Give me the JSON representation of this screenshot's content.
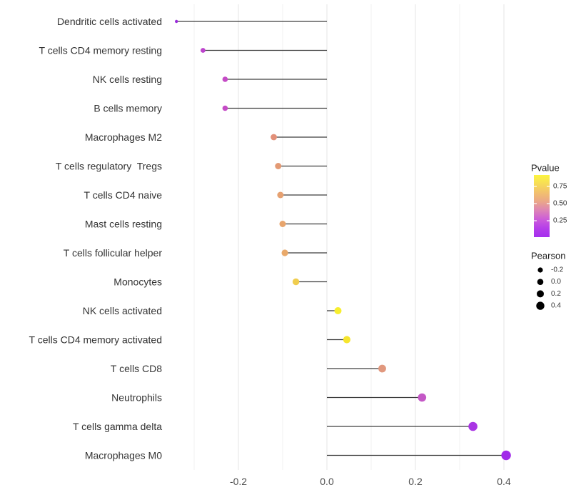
{
  "chart_data": {
    "type": "lollipop",
    "title": "",
    "xlabel": "",
    "ylabel": "",
    "x_tick_labels": [
      "-0.2",
      "0.0",
      "0.2",
      "0.4"
    ],
    "x_tick_values": [
      -0.2,
      0.0,
      0.2,
      0.4
    ],
    "xlim": [
      -0.36,
      0.445
    ],
    "grid_major": [
      -0.2,
      0.0,
      0.2,
      0.4
    ],
    "grid_minor": [
      -0.3,
      -0.1,
      0.1,
      0.3
    ],
    "legend_position": "right",
    "points": [
      {
        "label": "Dendritic cells activated",
        "pearson": -0.34,
        "pvalue": 0.1,
        "color": "#9a2adb",
        "r": 2.2
      },
      {
        "label": "T cells CD4 memory resting",
        "pearson": -0.28,
        "pvalue": 0.22,
        "color": "#bd44cd",
        "r": 3.4
      },
      {
        "label": "NK cells resting",
        "pearson": -0.23,
        "pvalue": 0.25,
        "color": "#c54bc6",
        "r": 3.8
      },
      {
        "label": "B cells memory",
        "pearson": -0.23,
        "pvalue": 0.25,
        "color": "#c54bc6",
        "r": 3.8
      },
      {
        "label": "Macrophages M2",
        "pearson": -0.12,
        "pvalue": 0.55,
        "color": "#e29079",
        "r": 4.4
      },
      {
        "label": "T cells regulatory  Tregs",
        "pearson": -0.11,
        "pvalue": 0.58,
        "color": "#e39a74",
        "r": 4.5
      },
      {
        "label": "T cells CD4 naive",
        "pearson": -0.105,
        "pvalue": 0.6,
        "color": "#e6a171",
        "r": 4.5
      },
      {
        "label": "Mast cells resting",
        "pearson": -0.1,
        "pvalue": 0.62,
        "color": "#e8a56d",
        "r": 4.5
      },
      {
        "label": "T cells follicular helper",
        "pearson": -0.095,
        "pvalue": 0.63,
        "color": "#e9a96a",
        "r": 4.6
      },
      {
        "label": "Monocytes",
        "pearson": -0.07,
        "pvalue": 0.78,
        "color": "#f0cd4e",
        "r": 4.7
      },
      {
        "label": "NK cells activated",
        "pearson": 0.025,
        "pvalue": 0.9,
        "color": "#f7ee2e",
        "r": 5.0
      },
      {
        "label": "T cells CD4 memory activated",
        "pearson": 0.045,
        "pvalue": 0.88,
        "color": "#f6e52e",
        "r": 5.1
      },
      {
        "label": "T cells CD8",
        "pearson": 0.125,
        "pvalue": 0.55,
        "color": "#e1987e",
        "r": 5.4
      },
      {
        "label": "Neutrophils",
        "pearson": 0.215,
        "pvalue": 0.28,
        "color": "#c458c6",
        "r": 5.8
      },
      {
        "label": "T cells gamma delta",
        "pearson": 0.33,
        "pvalue": 0.13,
        "color": "#a935e4",
        "r": 6.3
      },
      {
        "label": "Macrophages M0",
        "pearson": 0.405,
        "pvalue": 0.1,
        "color": "#a129e9",
        "r": 6.7
      }
    ],
    "legend_pvalue": {
      "title": "Pvalue",
      "tick_labels": [
        "0.75",
        "0.50",
        "0.25"
      ],
      "gradient_top_to_bottom": [
        "#fcf43f",
        "#f7dc57",
        "#f2c06e",
        "#eaa689",
        "#dd83b7",
        "#cc5cd9",
        "#b53ee9",
        "#a52fee"
      ]
    },
    "legend_pearson": {
      "title": "Pearson",
      "items": [
        {
          "label": "-0.2",
          "r": 3.6
        },
        {
          "label": "0.0",
          "r": 4.3
        },
        {
          "label": "0.2",
          "r": 5.0
        },
        {
          "label": "0.4",
          "r": 5.7
        }
      ]
    }
  },
  "colors": {
    "background": "#ffffff",
    "stem": "#3d3d3d",
    "grid_major": "#e4e4e4",
    "grid_minor": "#f0f0f0",
    "category_text": "#333333",
    "tick_text": "#4d4d4d",
    "legend_title_text": "#1a1a1a",
    "legend_label_text": "#333333",
    "legend_dot": "#000000",
    "colorbar_tick": "#ffffff"
  }
}
